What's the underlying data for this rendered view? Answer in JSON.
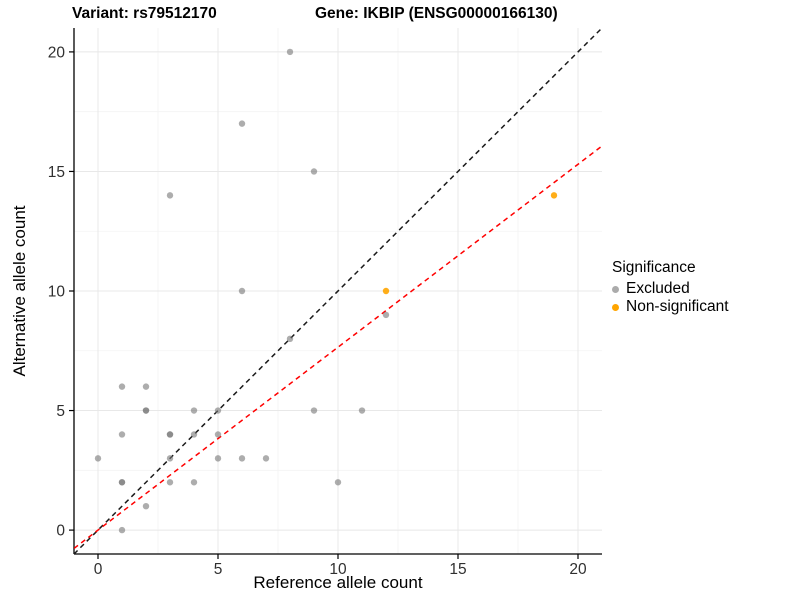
{
  "chart_data": {
    "type": "scatter",
    "title_left": "Variant: rs79512170",
    "title_right": "Gene: IKBIP (ENSG00000166130)",
    "xlabel": "Reference allele count",
    "ylabel": "Alternative allele count",
    "xlim": [
      -1,
      21
    ],
    "ylim": [
      -1,
      21
    ],
    "x_ticks": [
      "0",
      "5",
      "10",
      "15",
      "20"
    ],
    "y_ticks": [
      "0",
      "5",
      "10",
      "15",
      "20"
    ],
    "x_tick_values": [
      0,
      5,
      10,
      15,
      20
    ],
    "y_tick_values": [
      0,
      5,
      10,
      15,
      20
    ],
    "minor_tick_values": [
      2.5,
      7.5,
      12.5,
      17.5
    ],
    "grid": "major+minor on white, no top/right border",
    "colors": {
      "excluded": "#777777",
      "non_significant": "#FFA500",
      "identity_line": "#1A1A1A",
      "fit_line": "#FF0000",
      "major_grid": "#E8E8E8",
      "minor_grid": "#F3F3F3",
      "axis_line": "#000000",
      "tick_text": "#303030"
    },
    "legend": {
      "title": "Significance",
      "position": "right-middle",
      "items": [
        {
          "label": "Excluded",
          "color": "#ABABAB"
        },
        {
          "label": "Non-significant",
          "color": "#FFA500"
        }
      ]
    },
    "series": [
      {
        "name": "Excluded",
        "color": "#777777",
        "opacity": 0.6,
        "points": [
          [
            8,
            20
          ],
          [
            6,
            17
          ],
          [
            9,
            15
          ],
          [
            3,
            14
          ],
          [
            6,
            10
          ],
          [
            12,
            9
          ],
          [
            8,
            8
          ],
          [
            1,
            6
          ],
          [
            2,
            6
          ],
          [
            2,
            5
          ],
          [
            2,
            5
          ],
          [
            4,
            5
          ],
          [
            5,
            5
          ],
          [
            9,
            5
          ],
          [
            11,
            5
          ],
          [
            1,
            4
          ],
          [
            3,
            4
          ],
          [
            3,
            4
          ],
          [
            4,
            4
          ],
          [
            5,
            4
          ],
          [
            0,
            3
          ],
          [
            3,
            3
          ],
          [
            5,
            3
          ],
          [
            6,
            3
          ],
          [
            7,
            3
          ],
          [
            1,
            2
          ],
          [
            1,
            2
          ],
          [
            3,
            2
          ],
          [
            4,
            2
          ],
          [
            10,
            2
          ],
          [
            2,
            1
          ],
          [
            1,
            0
          ]
        ]
      },
      {
        "name": "Non-significant",
        "color": "#FFA500",
        "opacity": 0.9,
        "points": [
          [
            12,
            10
          ],
          [
            19,
            14
          ]
        ]
      }
    ],
    "lines": [
      {
        "name": "identity",
        "color": "#1A1A1A",
        "dashed": true,
        "slope": 1,
        "intercept": 0
      },
      {
        "name": "fit",
        "color": "#FF0000",
        "dashed": true,
        "slope": 0.765,
        "intercept": 0
      }
    ]
  }
}
